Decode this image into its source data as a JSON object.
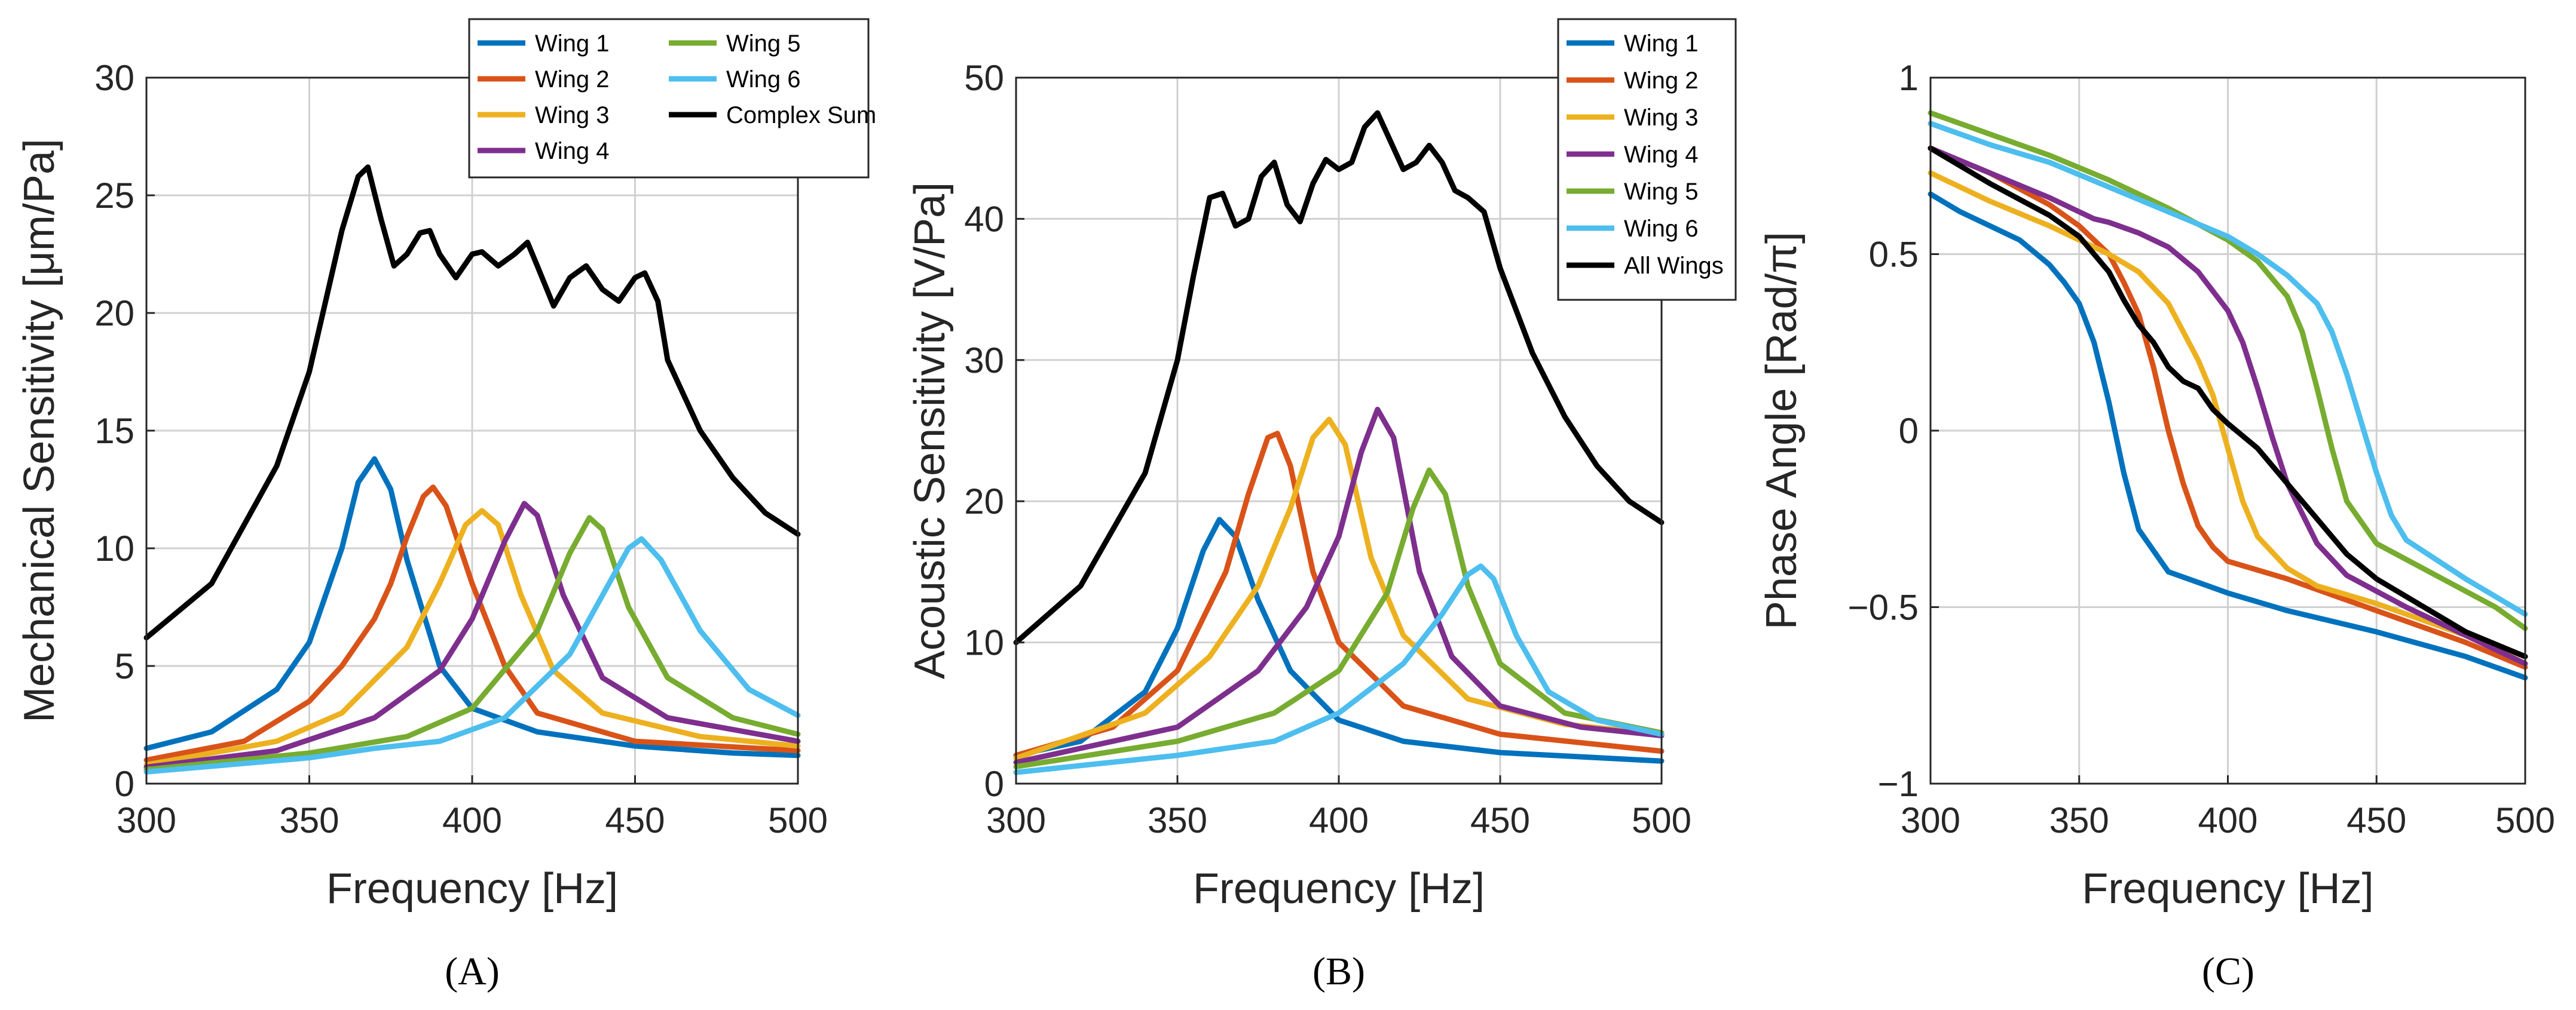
{
  "colors": {
    "Wing 1": "#0072BD",
    "Wing 2": "#D95319",
    "Wing 3": "#EDB120",
    "Wing 4": "#7E2F8E",
    "Wing 5": "#77AC30",
    "Wing 6": "#4DBEEE",
    "Complex Sum": "#000000",
    "All Wings": "#000000"
  },
  "chart_data": [
    {
      "type": "line",
      "panel_label": "(A)",
      "xlabel": "Frequency [Hz]",
      "ylabel": "Mechanical Sensitivity [μm/Pa]",
      "xlim": [
        300,
        500
      ],
      "ylim": [
        0,
        30
      ],
      "xticks": [
        300,
        350,
        400,
        450,
        500
      ],
      "yticks": [
        0,
        5,
        10,
        15,
        20,
        25,
        30
      ],
      "ytick_labels": [
        "0",
        "5",
        "10",
        "15",
        "20",
        "25",
        "30"
      ],
      "grid": true,
      "legend": {
        "placement": "top-right",
        "columns": 2,
        "entries": [
          "Wing 1",
          "Wing 2",
          "Wing 3",
          "Wing 4",
          "Wing 5",
          "Wing 6",
          "Complex Sum"
        ]
      },
      "series": [
        {
          "name": "Wing 1",
          "x": [
            300,
            320,
            340,
            350,
            360,
            365,
            370,
            375,
            380,
            390,
            400,
            420,
            450,
            480,
            500
          ],
          "y": [
            1.5,
            2.2,
            4.0,
            6.0,
            10.0,
            12.8,
            13.8,
            12.5,
            9.5,
            5.0,
            3.2,
            2.2,
            1.6,
            1.3,
            1.2
          ]
        },
        {
          "name": "Wing 2",
          "x": [
            300,
            330,
            350,
            360,
            370,
            375,
            380,
            385,
            388,
            392,
            400,
            410,
            420,
            450,
            500
          ],
          "y": [
            1.0,
            1.8,
            3.5,
            5.0,
            7.0,
            8.5,
            10.5,
            12.2,
            12.6,
            11.8,
            8.5,
            5.0,
            3.0,
            1.8,
            1.4
          ]
        },
        {
          "name": "Wing 3",
          "x": [
            300,
            340,
            360,
            380,
            390,
            398,
            403,
            408,
            415,
            425,
            440,
            470,
            500
          ],
          "y": [
            0.8,
            1.8,
            3.0,
            5.8,
            8.5,
            11.0,
            11.6,
            11.0,
            8.0,
            4.8,
            3.0,
            2.0,
            1.6
          ]
        },
        {
          "name": "Wing 4",
          "x": [
            300,
            340,
            370,
            390,
            400,
            410,
            416,
            420,
            428,
            440,
            460,
            500
          ],
          "y": [
            0.7,
            1.4,
            2.8,
            4.8,
            7.0,
            10.3,
            11.9,
            11.4,
            8.0,
            4.5,
            2.8,
            1.8
          ]
        },
        {
          "name": "Wing 5",
          "x": [
            300,
            350,
            380,
            400,
            420,
            430,
            436,
            440,
            448,
            460,
            480,
            500
          ],
          "y": [
            0.6,
            1.3,
            2.0,
            3.2,
            6.5,
            9.8,
            11.3,
            10.8,
            7.5,
            4.5,
            2.8,
            2.1
          ]
        },
        {
          "name": "Wing 6",
          "x": [
            300,
            350,
            370,
            390,
            410,
            430,
            440,
            448,
            452,
            458,
            470,
            485,
            500
          ],
          "y": [
            0.5,
            1.1,
            1.5,
            1.8,
            2.8,
            5.5,
            8.0,
            10.0,
            10.4,
            9.5,
            6.5,
            4.0,
            2.9
          ]
        },
        {
          "name": "Complex Sum",
          "x": [
            300,
            320,
            340,
            350,
            355,
            360,
            365,
            368,
            372,
            376,
            380,
            384,
            387,
            390,
            395,
            400,
            403,
            408,
            413,
            417,
            420,
            425,
            430,
            435,
            440,
            445,
            450,
            453,
            457,
            460,
            470,
            480,
            490,
            500
          ],
          "y": [
            6.2,
            8.5,
            13.5,
            17.5,
            20.5,
            23.5,
            25.8,
            26.2,
            24.0,
            22.0,
            22.5,
            23.4,
            23.5,
            22.5,
            21.5,
            22.5,
            22.6,
            22.0,
            22.5,
            23.0,
            22.0,
            20.3,
            21.5,
            22.0,
            21.0,
            20.5,
            21.5,
            21.7,
            20.5,
            18.0,
            15.0,
            13.0,
            11.5,
            10.6
          ]
        }
      ]
    },
    {
      "type": "line",
      "panel_label": "(B)",
      "xlabel": "Frequency [Hz]",
      "ylabel": "Acoustic  Sensitivity [V/Pa]",
      "xlim": [
        300,
        500
      ],
      "ylim": [
        0,
        50
      ],
      "xticks": [
        300,
        350,
        400,
        450,
        500
      ],
      "yticks": [
        0,
        10,
        20,
        30,
        40,
        50
      ],
      "ytick_labels": [
        "0",
        "10",
        "20",
        "30",
        "40",
        "50"
      ],
      "grid": true,
      "legend": {
        "placement": "top-right",
        "columns": 1,
        "entries": [
          "Wing 1",
          "Wing 2",
          "Wing 3",
          "Wing 4",
          "Wing 5",
          "Wing 6",
          "All Wings"
        ]
      },
      "series": [
        {
          "name": "Wing 1",
          "x": [
            300,
            320,
            340,
            350,
            358,
            363,
            368,
            375,
            385,
            400,
            420,
            450,
            500
          ],
          "y": [
            2.0,
            3.0,
            6.5,
            11.0,
            16.5,
            18.7,
            17.5,
            13.0,
            8.0,
            4.5,
            3.0,
            2.2,
            1.6
          ]
        },
        {
          "name": "Wing 2",
          "x": [
            300,
            330,
            350,
            365,
            372,
            378,
            381,
            385,
            392,
            400,
            420,
            450,
            500
          ],
          "y": [
            2.0,
            4.0,
            8.0,
            15.0,
            20.5,
            24.5,
            24.8,
            22.5,
            15.0,
            10.0,
            5.5,
            3.5,
            2.3
          ]
        },
        {
          "name": "Wing 3",
          "x": [
            300,
            340,
            360,
            375,
            385,
            392,
            397,
            402,
            410,
            420,
            440,
            470,
            500
          ],
          "y": [
            1.8,
            5.0,
            9.0,
            14.0,
            19.5,
            24.5,
            25.8,
            24.0,
            16.0,
            10.5,
            6.0,
            4.2,
            3.5
          ]
        },
        {
          "name": "Wing 4",
          "x": [
            300,
            350,
            375,
            390,
            400,
            407,
            412,
            417,
            425,
            435,
            450,
            475,
            500
          ],
          "y": [
            1.5,
            4.0,
            8.0,
            12.5,
            17.5,
            23.5,
            26.5,
            24.5,
            15.0,
            9.0,
            5.5,
            4.0,
            3.4
          ]
        },
        {
          "name": "Wing 5",
          "x": [
            300,
            350,
            380,
            400,
            415,
            423,
            428,
            433,
            440,
            450,
            470,
            500
          ],
          "y": [
            1.2,
            3.0,
            5.0,
            8.0,
            13.5,
            19.5,
            22.2,
            20.5,
            14.0,
            8.5,
            5.0,
            3.6
          ]
        },
        {
          "name": "Wing 6",
          "x": [
            300,
            350,
            380,
            400,
            420,
            432,
            440,
            444,
            448,
            455,
            465,
            480,
            500
          ],
          "y": [
            0.8,
            2.0,
            3.0,
            5.0,
            8.5,
            12.0,
            14.8,
            15.4,
            14.5,
            10.5,
            6.5,
            4.5,
            3.5
          ]
        },
        {
          "name": "All Wings",
          "x": [
            300,
            320,
            340,
            350,
            355,
            360,
            364,
            368,
            372,
            376,
            380,
            384,
            388,
            392,
            396,
            400,
            404,
            408,
            412,
            416,
            420,
            424,
            428,
            432,
            436,
            440,
            445,
            450,
            460,
            470,
            480,
            490,
            500
          ],
          "y": [
            10.0,
            14.0,
            22.0,
            30.0,
            36.0,
            41.5,
            41.8,
            39.5,
            40.0,
            43.0,
            44.0,
            41.0,
            39.8,
            42.5,
            44.2,
            43.5,
            44.0,
            46.5,
            47.5,
            45.5,
            43.5,
            44.0,
            45.2,
            44.0,
            42.0,
            41.5,
            40.5,
            36.5,
            30.5,
            26.0,
            22.5,
            20.0,
            18.5
          ]
        }
      ]
    },
    {
      "type": "line",
      "panel_label": "(C)",
      "xlabel": "Frequency [Hz]",
      "ylabel": "Phase Angle [Rad/π]",
      "xlim": [
        300,
        500
      ],
      "ylim": [
        -1,
        1
      ],
      "xticks": [
        300,
        350,
        400,
        450,
        500
      ],
      "yticks": [
        -1,
        -0.5,
        0,
        0.5,
        1
      ],
      "ytick_labels": [
        "−1",
        "−0.5",
        "0",
        "0.5",
        "1"
      ],
      "grid": true,
      "series": [
        {
          "name": "Wing 1",
          "x": [
            300,
            310,
            320,
            330,
            340,
            345,
            350,
            355,
            360,
            365,
            370,
            380,
            390,
            400,
            420,
            450,
            480,
            500
          ],
          "y": [
            0.67,
            0.62,
            0.58,
            0.54,
            0.47,
            0.42,
            0.36,
            0.25,
            0.08,
            -0.12,
            -0.28,
            -0.4,
            -0.43,
            -0.46,
            -0.51,
            -0.57,
            -0.64,
            -0.7
          ]
        },
        {
          "name": "Wing 2",
          "x": [
            300,
            320,
            340,
            350,
            360,
            365,
            370,
            375,
            380,
            385,
            390,
            395,
            400,
            420,
            440,
            460,
            480,
            500
          ],
          "y": [
            0.8,
            0.73,
            0.64,
            0.58,
            0.5,
            0.42,
            0.33,
            0.18,
            0.0,
            -0.15,
            -0.27,
            -0.33,
            -0.37,
            -0.42,
            -0.48,
            -0.54,
            -0.6,
            -0.67
          ]
        },
        {
          "name": "Wing 3",
          "x": [
            300,
            320,
            340,
            360,
            370,
            380,
            390,
            395,
            400,
            405,
            410,
            420,
            430,
            450,
            470,
            500
          ],
          "y": [
            0.73,
            0.65,
            0.58,
            0.5,
            0.45,
            0.36,
            0.2,
            0.1,
            -0.05,
            -0.2,
            -0.3,
            -0.39,
            -0.44,
            -0.49,
            -0.55,
            -0.64
          ]
        },
        {
          "name": "Wing 4",
          "x": [
            300,
            320,
            340,
            355,
            360,
            370,
            380,
            390,
            400,
            405,
            410,
            415,
            420,
            430,
            440,
            460,
            480,
            500
          ],
          "y": [
            0.8,
            0.73,
            0.66,
            0.6,
            0.59,
            0.56,
            0.52,
            0.45,
            0.34,
            0.25,
            0.12,
            -0.02,
            -0.15,
            -0.32,
            -0.41,
            -0.5,
            -0.58,
            -0.66
          ]
        },
        {
          "name": "Wing 5",
          "x": [
            300,
            320,
            340,
            360,
            380,
            400,
            410,
            420,
            425,
            430,
            435,
            440,
            450,
            470,
            490,
            500
          ],
          "y": [
            0.9,
            0.84,
            0.78,
            0.71,
            0.63,
            0.54,
            0.48,
            0.38,
            0.28,
            0.12,
            -0.05,
            -0.2,
            -0.32,
            -0.41,
            -0.5,
            -0.56
          ]
        },
        {
          "name": "Wing 6",
          "x": [
            300,
            320,
            340,
            360,
            380,
            400,
            410,
            420,
            430,
            435,
            440,
            445,
            450,
            455,
            460,
            480,
            500
          ],
          "y": [
            0.87,
            0.81,
            0.76,
            0.69,
            0.62,
            0.55,
            0.5,
            0.44,
            0.36,
            0.28,
            0.16,
            0.02,
            -0.12,
            -0.24,
            -0.31,
            -0.42,
            -0.52
          ]
        },
        {
          "name": "All Wings",
          "x": [
            300,
            320,
            340,
            350,
            360,
            365,
            370,
            375,
            380,
            385,
            390,
            395,
            400,
            410,
            420,
            430,
            440,
            450,
            460,
            480,
            500
          ],
          "y": [
            0.8,
            0.7,
            0.61,
            0.55,
            0.45,
            0.37,
            0.3,
            0.25,
            0.18,
            0.14,
            0.12,
            0.06,
            0.02,
            -0.05,
            -0.15,
            -0.25,
            -0.35,
            -0.42,
            -0.47,
            -0.57,
            -0.64
          ]
        }
      ]
    }
  ]
}
